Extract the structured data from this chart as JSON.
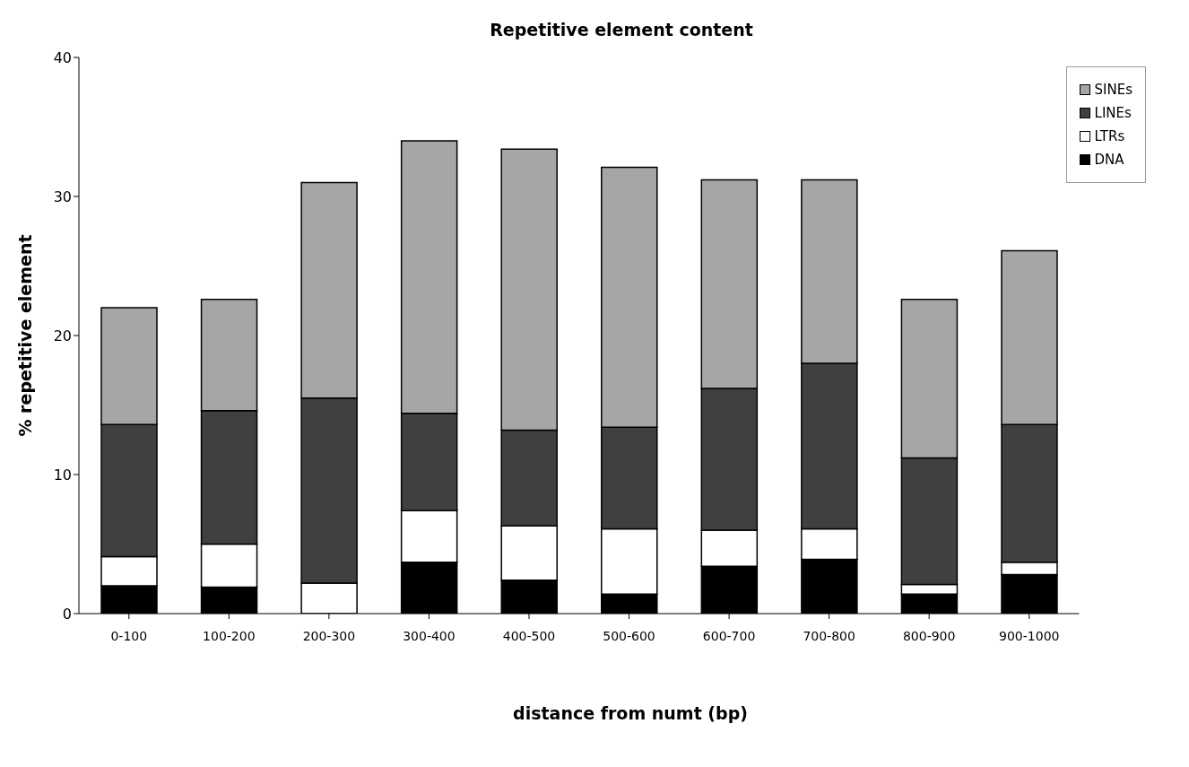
{
  "chart_data": {
    "type": "bar",
    "title": "Repetitive element content",
    "xlabel": "distance from numt (bp)",
    "ylabel": "% repetitive element",
    "categories": [
      "0-100",
      "100-200",
      "200-300",
      "300-400",
      "400-500",
      "500-600",
      "600-700",
      "700-800",
      "800-900",
      "900-1000"
    ],
    "stacked": true,
    "ylim": [
      0,
      40
    ],
    "yticks": [
      0,
      10,
      20,
      30,
      40
    ],
    "grid": false,
    "legend": "top right",
    "series": [
      {
        "name": "DNA",
        "color": "#000000",
        "values": [
          2.0,
          1.9,
          0,
          3.7,
          2.4,
          1.4,
          3.4,
          3.9,
          1.4,
          2.8
        ]
      },
      {
        "name": "LTRs",
        "color": "#ffffff",
        "values": [
          2.1,
          3.1,
          2.2,
          3.7,
          3.9,
          4.7,
          2.6,
          2.2,
          0.7,
          0.9
        ]
      },
      {
        "name": "LINEs",
        "color": "#404040",
        "values": [
          9.5,
          9.6,
          13.3,
          7.0,
          6.9,
          7.3,
          10.2,
          11.9,
          9.1,
          9.9
        ]
      },
      {
        "name": "SINEs",
        "color": "#a6a6a6",
        "values": [
          8.4,
          8.0,
          15.5,
          19.6,
          20.2,
          18.7,
          15.0,
          13.2,
          11.4,
          12.5
        ]
      }
    ]
  }
}
